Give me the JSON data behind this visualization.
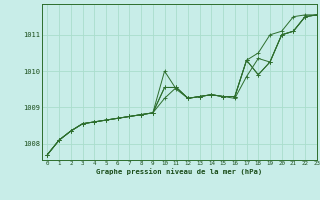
{
  "title": "Graphe pression niveau de la mer (hPa)",
  "background_color": "#c8ede8",
  "grid_color": "#aaddcc",
  "line_color": "#2d6e2d",
  "text_color": "#1a4d1a",
  "xlim": [
    -0.5,
    23
  ],
  "ylim": [
    1007.55,
    1011.85
  ],
  "yticks": [
    1008,
    1009,
    1010,
    1011
  ],
  "xticks": [
    0,
    1,
    2,
    3,
    4,
    5,
    6,
    7,
    8,
    9,
    10,
    11,
    12,
    13,
    14,
    15,
    16,
    17,
    18,
    19,
    20,
    21,
    22,
    23
  ],
  "series": [
    [
      1007.7,
      1008.1,
      1008.35,
      1008.55,
      1008.6,
      1008.65,
      1008.7,
      1008.75,
      1008.8,
      1008.85,
      1009.25,
      1009.55,
      1009.25,
      1009.3,
      1009.35,
      1009.3,
      1009.3,
      1010.3,
      1009.9,
      1010.25,
      1011.0,
      1011.1,
      1011.5,
      1011.55
    ],
    [
      1007.7,
      1008.1,
      1008.35,
      1008.55,
      1008.6,
      1008.65,
      1008.7,
      1008.75,
      1008.8,
      1008.85,
      1010.0,
      1009.5,
      1009.25,
      1009.3,
      1009.35,
      1009.3,
      1009.3,
      1010.3,
      1009.9,
      1010.25,
      1011.0,
      1011.1,
      1011.5,
      1011.55
    ],
    [
      1007.7,
      1008.1,
      1008.35,
      1008.55,
      1008.6,
      1008.65,
      1008.7,
      1008.75,
      1008.8,
      1008.85,
      1009.55,
      1009.55,
      1009.25,
      1009.3,
      1009.35,
      1009.3,
      1009.25,
      1009.85,
      1010.35,
      1010.25,
      1011.0,
      1011.1,
      1011.5,
      1011.55
    ],
    [
      1007.7,
      1008.1,
      1008.35,
      1008.55,
      1008.6,
      1008.65,
      1008.7,
      1008.75,
      1008.8,
      1008.85,
      1009.55,
      1009.55,
      1009.25,
      1009.3,
      1009.35,
      1009.3,
      1009.3,
      1010.3,
      1010.5,
      1011.0,
      1011.1,
      1011.5,
      1011.55,
      1011.55
    ]
  ]
}
